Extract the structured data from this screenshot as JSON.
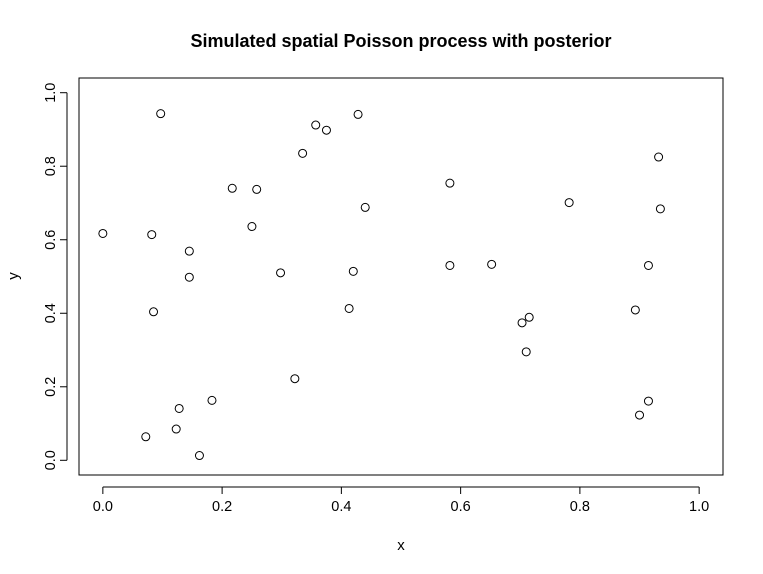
{
  "chart_data": {
    "type": "scatter",
    "title": "Simulated spatial Poisson process with posterior",
    "xlabel": "x",
    "ylabel": "y",
    "xlim": [
      -0.04,
      1.04
    ],
    "ylim": [
      -0.04,
      1.04
    ],
    "xticks": [
      "0.0",
      "0.2",
      "0.4",
      "0.6",
      "0.8",
      "1.0"
    ],
    "yticks": [
      "0.0",
      "0.2",
      "0.4",
      "0.6",
      "0.8",
      "1.0"
    ],
    "grid": false,
    "points": [
      {
        "x": 0.0,
        "y": 0.617
      },
      {
        "x": 0.097,
        "y": 0.943
      },
      {
        "x": 0.082,
        "y": 0.614
      },
      {
        "x": 0.145,
        "y": 0.569
      },
      {
        "x": 0.145,
        "y": 0.498
      },
      {
        "x": 0.085,
        "y": 0.404
      },
      {
        "x": 0.072,
        "y": 0.064
      },
      {
        "x": 0.128,
        "y": 0.141
      },
      {
        "x": 0.123,
        "y": 0.085
      },
      {
        "x": 0.183,
        "y": 0.163
      },
      {
        "x": 0.162,
        "y": 0.013
      },
      {
        "x": 0.217,
        "y": 0.74
      },
      {
        "x": 0.258,
        "y": 0.737
      },
      {
        "x": 0.25,
        "y": 0.636
      },
      {
        "x": 0.298,
        "y": 0.51
      },
      {
        "x": 0.322,
        "y": 0.222
      },
      {
        "x": 0.335,
        "y": 0.835
      },
      {
        "x": 0.357,
        "y": 0.912
      },
      {
        "x": 0.375,
        "y": 0.898
      },
      {
        "x": 0.428,
        "y": 0.941
      },
      {
        "x": 0.44,
        "y": 0.688
      },
      {
        "x": 0.42,
        "y": 0.514
      },
      {
        "x": 0.413,
        "y": 0.413
      },
      {
        "x": 0.582,
        "y": 0.754
      },
      {
        "x": 0.582,
        "y": 0.53
      },
      {
        "x": 0.652,
        "y": 0.533
      },
      {
        "x": 0.703,
        "y": 0.374
      },
      {
        "x": 0.715,
        "y": 0.389
      },
      {
        "x": 0.71,
        "y": 0.295
      },
      {
        "x": 0.782,
        "y": 0.701
      },
      {
        "x": 0.893,
        "y": 0.409
      },
      {
        "x": 0.915,
        "y": 0.53
      },
      {
        "x": 0.932,
        "y": 0.825
      },
      {
        "x": 0.935,
        "y": 0.684
      },
      {
        "x": 0.915,
        "y": 0.161
      },
      {
        "x": 0.9,
        "y": 0.123
      }
    ]
  }
}
